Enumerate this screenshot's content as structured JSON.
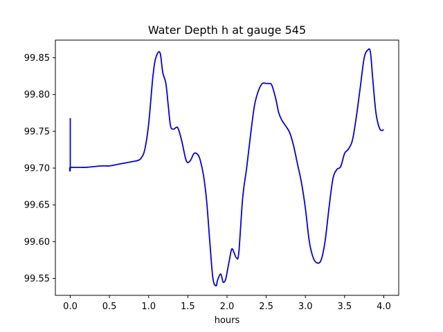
{
  "chart_data": {
    "type": "line",
    "title": "Water Depth h at gauge 545",
    "xlabel": "hours",
    "ylabel": "",
    "xlim": [
      -0.19,
      4.19
    ],
    "ylim": [
      99.527,
      99.874
    ],
    "xticks": [
      0.0,
      0.5,
      1.0,
      1.5,
      2.0,
      2.5,
      3.0,
      3.5,
      4.0
    ],
    "xtick_labels": [
      "0.0",
      "0.5",
      "1.0",
      "1.5",
      "2.0",
      "2.5",
      "3.0",
      "3.5",
      "4.0"
    ],
    "yticks": [
      99.55,
      99.6,
      99.65,
      99.7,
      99.75,
      99.8,
      99.85
    ],
    "ytick_labels": [
      "99.55",
      "99.60",
      "99.65",
      "99.70",
      "99.75",
      "99.80",
      "99.85"
    ],
    "grid": false,
    "series": [
      {
        "color": "#0000dd",
        "x": [
          0.0,
          0.0,
          0.0,
          0.1,
          0.2,
          0.3,
          0.4,
          0.5,
          0.6,
          0.7,
          0.8,
          0.85,
          0.9,
          0.95,
          1.0,
          1.05,
          1.08,
          1.12,
          1.15,
          1.18,
          1.22,
          1.25,
          1.28,
          1.32,
          1.37,
          1.42,
          1.48,
          1.53,
          1.58,
          1.63,
          1.66,
          1.7,
          1.74,
          1.78,
          1.82,
          1.86,
          1.88,
          1.92,
          1.95,
          1.98,
          2.0,
          2.03,
          2.06,
          2.09,
          2.12,
          2.15,
          2.2,
          2.25,
          2.3,
          2.35,
          2.4,
          2.45,
          2.5,
          2.53,
          2.57,
          2.62,
          2.66,
          2.7,
          2.75,
          2.8,
          2.85,
          2.9,
          2.95,
          3.0,
          3.05,
          3.1,
          3.15,
          3.2,
          3.25,
          3.3,
          3.35,
          3.4,
          3.45,
          3.5,
          3.55,
          3.6,
          3.65,
          3.7,
          3.75,
          3.8,
          3.83,
          3.86,
          3.9,
          3.95,
          4.0
        ],
        "y": [
          99.768,
          99.701,
          99.701,
          99.701,
          99.701,
          99.702,
          99.703,
          99.703,
          99.705,
          99.707,
          99.709,
          99.71,
          99.713,
          99.725,
          99.76,
          99.82,
          99.845,
          99.857,
          99.855,
          99.83,
          99.815,
          99.785,
          99.757,
          99.753,
          99.755,
          99.738,
          99.71,
          99.71,
          99.72,
          99.718,
          99.71,
          99.69,
          99.655,
          99.6,
          99.55,
          99.54,
          99.548,
          99.556,
          99.545,
          99.548,
          99.558,
          99.575,
          99.59,
          99.585,
          99.578,
          99.585,
          99.66,
          99.7,
          99.745,
          99.785,
          99.805,
          99.815,
          99.815,
          99.815,
          99.813,
          99.795,
          99.775,
          99.765,
          99.757,
          99.748,
          99.73,
          99.705,
          99.68,
          99.645,
          99.6,
          99.578,
          99.571,
          99.575,
          99.6,
          99.645,
          99.685,
          99.698,
          99.702,
          99.72,
          99.726,
          99.738,
          99.77,
          99.81,
          99.85,
          99.861,
          99.857,
          99.82,
          99.775,
          99.753,
          99.752
        ]
      }
    ]
  }
}
